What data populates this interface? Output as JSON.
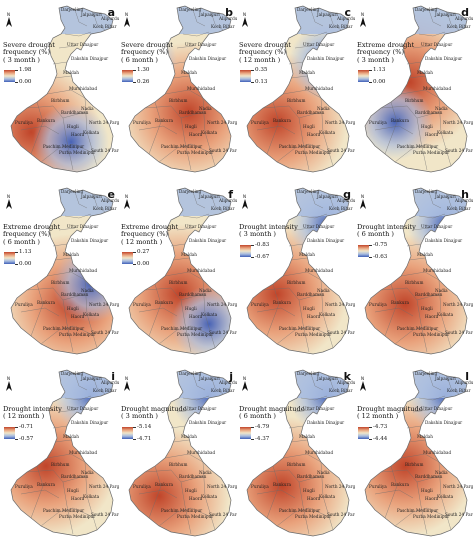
{
  "panels": [
    {
      "letter": "a",
      "title": "Severe drought\nfrequency (%)\n( 3 month )",
      "max": "1.98",
      "min": "0.00",
      "scheme": "warm-cool"
    },
    {
      "letter": "b",
      "title": "Severe drought\nfrequency (%)\n( 6 month )",
      "max": "1.30",
      "min": "0.26",
      "scheme": "warm-cool"
    },
    {
      "letter": "c",
      "title": "Severe drought\nfrequency (%)\n( 12 month )",
      "max": "0.35",
      "min": "0.13",
      "scheme": "warm-cool"
    },
    {
      "letter": "d",
      "title": "Extreme drought\nfrequency (%)\n( 3 month )",
      "max": "1.13",
      "min": "0.00",
      "scheme": "warm-cool"
    },
    {
      "letter": "e",
      "title": "Extreme drought\nfrequency (%)\n( 6 month )",
      "max": "1.13",
      "min": "0.00",
      "scheme": "warm-cool"
    },
    {
      "letter": "f",
      "title": "Extreme drought\nfrequency (%)\n( 12 month )",
      "max": "0.27",
      "min": "0.00",
      "scheme": "warm-cool"
    },
    {
      "letter": "g",
      "title": "Drought intensity\n( 3 month )",
      "max": "-0.83",
      "min": "-0.67",
      "scheme": "warm-cool"
    },
    {
      "letter": "h",
      "title": "Drought intensity\n( 6 month )",
      "max": "-0.75",
      "min": "-0.63",
      "scheme": "warm-cool"
    },
    {
      "letter": "i",
      "title": "Drought intensity\n( 12 month )",
      "max": "-0.71",
      "min": "-0.57",
      "scheme": "warm-cool"
    },
    {
      "letter": "j",
      "title": "Drought magnitude\n( 3 month )",
      "max": "-5.14",
      "min": "-4.71",
      "scheme": "warm-cool"
    },
    {
      "letter": "k",
      "title": "Drought magnitude\n( 6 month )",
      "max": "-4.79",
      "min": "-4.37",
      "scheme": "warm-cool"
    },
    {
      "letter": "l",
      "title": "Drought magnitude\n( 12 month )",
      "max": "-4.73",
      "min": "-4.44",
      "scheme": "warm-cool"
    }
  ],
  "district_labels": [
    "Darjeeling",
    "Jalpaiguri",
    "Alipurduar",
    "Koch Bihar",
    "Uttar Dinajpur",
    "Dakshin Dinajpur",
    "Maldah",
    "Murshidabad",
    "Birbhum",
    "Nadia",
    "Puruliya",
    "Bankura",
    "Barddhaman",
    "Hugli",
    "Haora",
    "Kolkata",
    "Paschim Medinipur",
    "Purba Medinipur",
    "North 24 Parganas",
    "South 24 Parganas"
  ],
  "north_label": "N",
  "colors": {
    "high": "#c0452a",
    "mid_high": "#e9a27c",
    "mid": "#f1e6c8",
    "mid_low": "#a9bde0",
    "low": "#3f5fb8",
    "boundary": "#6b6b6b"
  }
}
